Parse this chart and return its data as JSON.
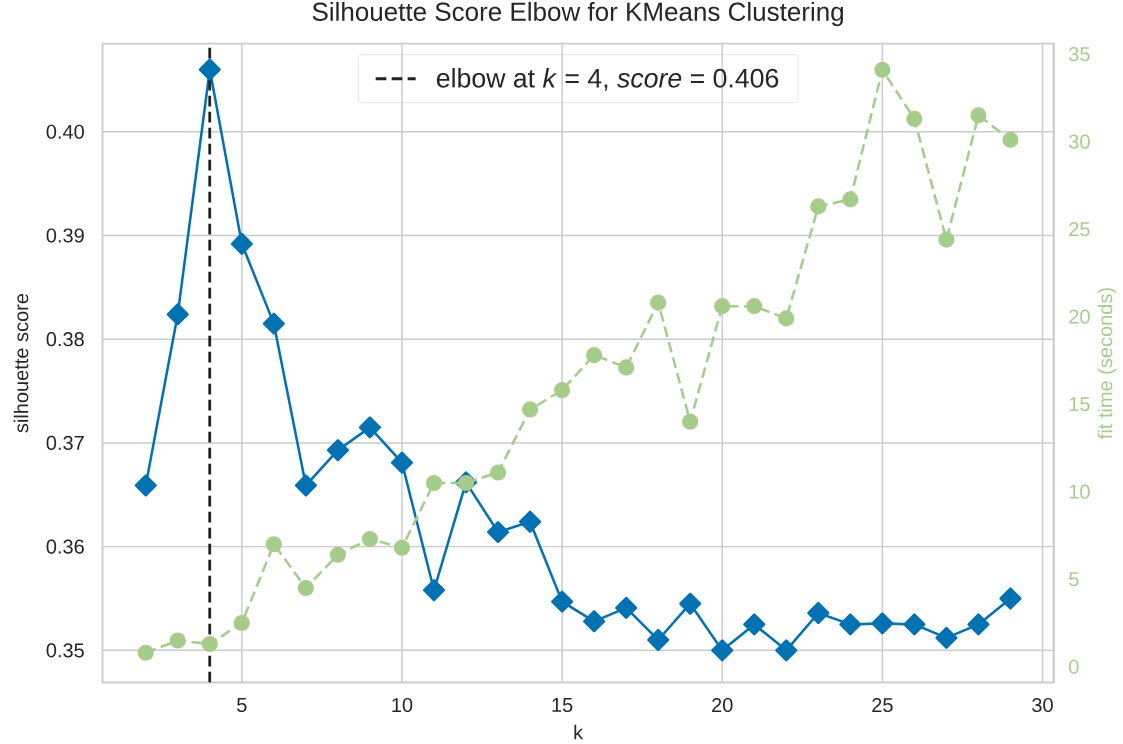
{
  "chart_data": {
    "type": "line",
    "title": "Silhouette Score Elbow for KMeans Clustering",
    "xlabel": "k",
    "ylabel": "silhouette score",
    "y2label": "fit time (seconds)",
    "x": [
      2,
      3,
      4,
      5,
      6,
      7,
      8,
      9,
      10,
      11,
      12,
      13,
      14,
      15,
      16,
      17,
      18,
      19,
      20,
      21,
      22,
      23,
      24,
      25,
      26,
      27,
      28,
      29
    ],
    "series": [
      {
        "color": "#0072b2",
        "marker": "diamond",
        "line_style": "solid",
        "values": [
          0.3659,
          0.3824,
          0.406,
          0.3892,
          0.3815,
          0.3659,
          0.3693,
          0.3715,
          0.3681,
          0.3558,
          0.3662,
          0.3614,
          0.3624,
          0.3547,
          0.3528,
          0.3541,
          0.351,
          0.3545,
          0.35,
          0.3525,
          0.35,
          0.3536,
          0.3525,
          0.3526,
          0.3525,
          0.3512,
          0.3525,
          0.355
        ]
      },
      {
        "color": "#a6cc8c",
        "marker": "circle",
        "line_style": "dashed",
        "axis": "y2",
        "values": [
          0.8,
          1.5,
          1.3,
          2.5,
          7.0,
          4.5,
          6.4,
          7.3,
          6.8,
          10.5,
          10.5,
          11.1,
          14.7,
          15.8,
          17.8,
          17.1,
          20.8,
          14.0,
          20.6,
          20.6,
          19.9,
          26.3,
          26.7,
          34.1,
          31.3,
          24.4,
          31.5,
          30.1
        ]
      }
    ],
    "xlim": [
      0.65,
      30.35
    ],
    "xticks": [
      5,
      10,
      15,
      20,
      25,
      30
    ],
    "ylim": [
      0.3469,
      0.4085
    ],
    "yticks": [
      0.35,
      0.36,
      0.37,
      0.38,
      0.39,
      {
        "value": 0.4,
        "label": "0.40"
      }
    ],
    "y2lim": [
      -0.9,
      35.6
    ],
    "y2ticks": [
      0,
      5,
      10,
      15,
      20,
      25,
      30,
      35
    ],
    "ref_lines": [
      {
        "axis": "x",
        "value": 4,
        "label": "elbow at *k* = 4, *score* = 0.406",
        "color": "#222222",
        "line_style": "dashed"
      }
    ],
    "grid": true,
    "legend": "top"
  }
}
